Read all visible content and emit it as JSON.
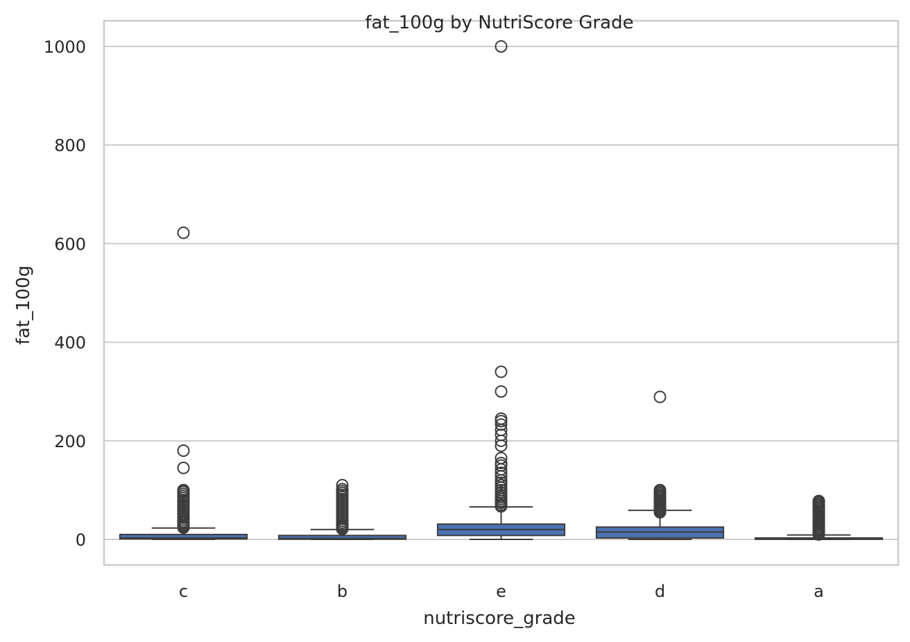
{
  "chart_data": {
    "type": "box",
    "title": "fat_100g by NutriScore Grade",
    "xlabel": "nutriscore_grade",
    "ylabel": "fat_100g",
    "ylim": [
      -52,
      1052
    ],
    "yticks": [
      0,
      200,
      400,
      600,
      800,
      1000
    ],
    "grid": true,
    "box_color": "#4c72b0",
    "line_color": "#3d3d3d",
    "categories": [
      "c",
      "b",
      "e",
      "d",
      "a"
    ],
    "boxes": [
      {
        "category": "c",
        "whisker_low": 0,
        "q1": 1,
        "median": 3,
        "q3": 10,
        "whisker_high": 23,
        "outliers": [
          24,
          26,
          28,
          30,
          33,
          36,
          40,
          44,
          48,
          52,
          56,
          60,
          64,
          68,
          72,
          76,
          80,
          84,
          88,
          92,
          96,
          99,
          100,
          145,
          180,
          622
        ]
      },
      {
        "category": "b",
        "whisker_low": 0,
        "q1": 0.5,
        "median": 2,
        "q3": 8,
        "whisker_high": 20,
        "outliers": [
          21,
          24,
          27,
          30,
          34,
          38,
          42,
          46,
          50,
          54,
          58,
          62,
          66,
          70,
          74,
          78,
          82,
          86,
          90,
          94,
          98,
          102,
          110
        ]
      },
      {
        "category": "e",
        "whisker_low": 0,
        "q1": 8,
        "median": 20,
        "q3": 31,
        "whisker_high": 66,
        "outliers": [
          67,
          70,
          74,
          78,
          82,
          86,
          90,
          95,
          100,
          105,
          110,
          115,
          120,
          128,
          135,
          142,
          150,
          155,
          165,
          190,
          200,
          212,
          222,
          233,
          240,
          245,
          300,
          340,
          1000
        ]
      },
      {
        "category": "d",
        "whisker_low": 0,
        "q1": 3,
        "median": 15,
        "q3": 25,
        "whisker_high": 59,
        "outliers": [
          55,
          58,
          61,
          64,
          67,
          70,
          73,
          76,
          79,
          82,
          85,
          88,
          91,
          94,
          97,
          100,
          289
        ]
      },
      {
        "category": "a",
        "whisker_low": 0,
        "q1": 0.3,
        "median": 1,
        "q3": 3,
        "whisker_high": 9,
        "outliers": [
          10,
          13,
          16,
          19,
          22,
          25,
          28,
          31,
          34,
          37,
          40,
          43,
          46,
          49,
          52,
          55,
          58,
          61,
          64,
          67,
          70,
          73,
          76,
          78
        ]
      }
    ]
  }
}
